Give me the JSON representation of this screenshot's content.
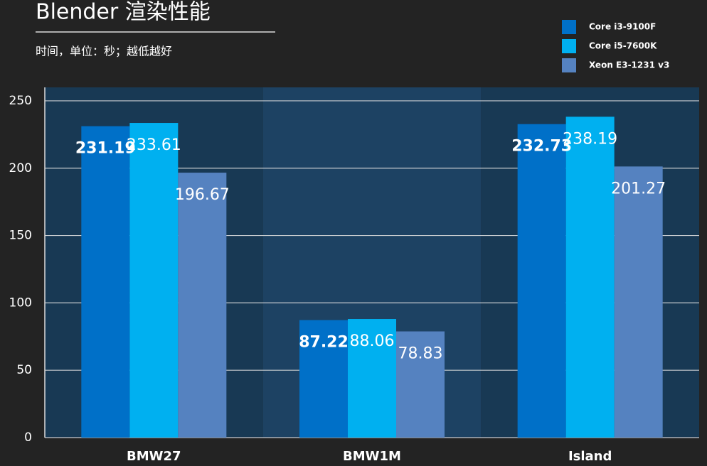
{
  "chart_data": {
    "type": "bar",
    "title": "Blender 渲染性能",
    "subtitle": "时间，单位：秒；越低越好",
    "categories": [
      "BMW27",
      "BMW1M",
      "Island"
    ],
    "series": [
      {
        "name": "Core i3-9100F",
        "color": "#0070c8",
        "values": [
          231.19,
          87.22,
          232.73
        ]
      },
      {
        "name": "Core i5-7600K",
        "color": "#00b0f0",
        "values": [
          233.61,
          88.06,
          238.19
        ]
      },
      {
        "name": "Xeon E3-1231 v3",
        "color": "#5582c0",
        "values": [
          196.67,
          78.83,
          201.27
        ]
      }
    ],
    "ylim": [
      0,
      260
    ],
    "yticks": [
      0,
      50,
      100,
      150,
      200,
      250
    ],
    "grid": true,
    "legend": "top-right"
  }
}
